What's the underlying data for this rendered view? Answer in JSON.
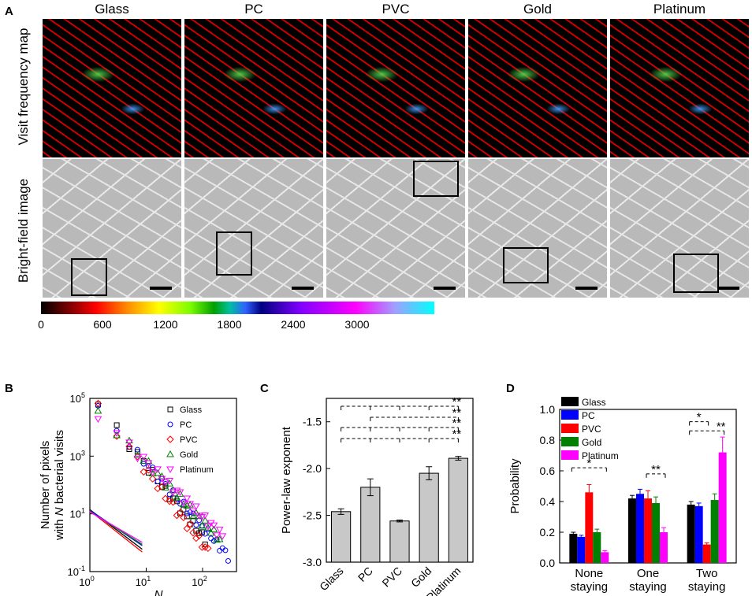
{
  "panel_labels": {
    "a": "A",
    "b": "B",
    "c": "C",
    "d": "D"
  },
  "panel_a": {
    "columns": [
      "Glass",
      "PC",
      "PVC",
      "Gold",
      "Platinum"
    ],
    "row_labels": {
      "top": "Visit frequency map",
      "bottom": "Bright-field image"
    },
    "colorbar_ticks": [
      "0",
      "600",
      "1200",
      "1800",
      "2400",
      "3000"
    ]
  },
  "chart_data": [
    {
      "panel": "B",
      "type": "scatter",
      "ylabel_line1": "Number of pixels",
      "ylabel_line2_pre": "with ",
      "ylabel_italic": "N",
      "ylabel_line2_post": " bacterial visits",
      "xlabel": "N",
      "x_scale": "log",
      "y_scale": "log",
      "xlim": [
        1,
        400
      ],
      "ylim": [
        0.1,
        100000
      ],
      "x_ticks": [
        {
          "base": "10",
          "exp": "0",
          "v": 1
        },
        {
          "base": "10",
          "exp": "1",
          "v": 10
        },
        {
          "base": "10",
          "exp": "2",
          "v": 100
        }
      ],
      "y_ticks": [
        {
          "base": "10",
          "exp": "-1",
          "v": 0.1
        },
        {
          "base": "10",
          "exp": "1",
          "v": 10
        },
        {
          "base": "10",
          "exp": "3",
          "v": 1000
        },
        {
          "base": "10",
          "exp": "5",
          "v": 100000
        }
      ],
      "legend_position": "right",
      "series": [
        {
          "name": "Glass",
          "marker": "square",
          "color": "#000000",
          "a": 140000,
          "k": 2.46,
          "xmax": 120,
          "fit_color": "#000000"
        },
        {
          "name": "PC",
          "marker": "circle",
          "color": "#0000ff",
          "a": 90000,
          "k": 2.2,
          "xmax": 300,
          "fit_color": "#0000ff"
        },
        {
          "name": "PVC",
          "marker": "diamond",
          "color": "#ff0000",
          "a": 120000,
          "k": 2.56,
          "xmax": 130,
          "fit_color": "#ff0000"
        },
        {
          "name": "Gold",
          "marker": "triangle-up",
          "color": "#008000",
          "a": 70000,
          "k": 2.05,
          "xmax": 220,
          "fit_color": "#008000"
        },
        {
          "name": "Platinum",
          "marker": "triangle-down",
          "color": "#ff00ff",
          "a": 50000,
          "k": 1.89,
          "xmax": 230,
          "fit_color": "#ff00ff"
        }
      ],
      "fit_lines": [
        {
          "color": "#000000",
          "slope": -2.46
        },
        {
          "color": "#0000ff",
          "slope": -2.2
        },
        {
          "color": "#ff0000",
          "slope": -2.56
        },
        {
          "color": "#008000",
          "slope": -2.05
        },
        {
          "color": "#ff00ff",
          "slope": -1.89
        }
      ]
    },
    {
      "panel": "C",
      "type": "bar",
      "ylabel": "Power-law exponent",
      "ylim": [
        -3.0,
        -1.25
      ],
      "y_ticks": [
        "-3.0",
        "-2.5",
        "-2.0",
        "-1.5"
      ],
      "y_tick_values": [
        -3.0,
        -2.5,
        -2.0,
        -1.5
      ],
      "categories": [
        "Glass",
        "PC",
        "PVC",
        "Gold",
        "Platinum"
      ],
      "values": [
        -2.46,
        -2.2,
        -2.56,
        -2.05,
        -1.89
      ],
      "errors": [
        0.03,
        0.09,
        0.01,
        0.07,
        0.02
      ],
      "bar_color": "#c8c8c8",
      "significance": [
        {
          "label": "**",
          "from": 0,
          "to": 4,
          "level": 1
        },
        {
          "label": "**",
          "from": 0,
          "to": 4,
          "level": 2
        },
        {
          "label": "**",
          "from": 1,
          "to": 4,
          "level": 3
        },
        {
          "label": "**",
          "from": 0,
          "to": 4,
          "level": 4
        }
      ]
    },
    {
      "panel": "D",
      "type": "bar",
      "ylabel": "Probability",
      "ylim": [
        0.0,
        1.0
      ],
      "y_ticks": [
        "0.0",
        "0.2",
        "0.4",
        "0.6",
        "0.8",
        "1.0"
      ],
      "y_tick_values": [
        0.0,
        0.2,
        0.4,
        0.6,
        0.8,
        1.0
      ],
      "categories": [
        [
          "None",
          "staying"
        ],
        [
          "One",
          "staying"
        ],
        [
          "Two",
          "staying"
        ]
      ],
      "legend_position": "top-left",
      "series": [
        {
          "name": "Glass",
          "color": "#000000",
          "values": [
            0.19,
            0.42,
            0.38
          ],
          "errors": [
            0.01,
            0.02,
            0.02
          ]
        },
        {
          "name": "PC",
          "color": "#0000ff",
          "values": [
            0.17,
            0.45,
            0.37
          ],
          "errors": [
            0.01,
            0.03,
            0.02
          ]
        },
        {
          "name": "PVC",
          "color": "#ff0000",
          "values": [
            0.46,
            0.42,
            0.12
          ],
          "errors": [
            0.05,
            0.05,
            0.01
          ]
        },
        {
          "name": "Gold",
          "color": "#008000",
          "values": [
            0.2,
            0.39,
            0.41
          ],
          "errors": [
            0.02,
            0.04,
            0.04
          ]
        },
        {
          "name": "Platinum",
          "color": "#ff00ff",
          "values": [
            0.07,
            0.2,
            0.72
          ],
          "errors": [
            0.01,
            0.03,
            0.1
          ]
        }
      ],
      "significance": [
        {
          "label": "*",
          "group": 0
        },
        {
          "label": "**",
          "group": 1
        },
        {
          "label": "*",
          "group": 2
        },
        {
          "label": "**",
          "group": 2
        }
      ]
    }
  ]
}
